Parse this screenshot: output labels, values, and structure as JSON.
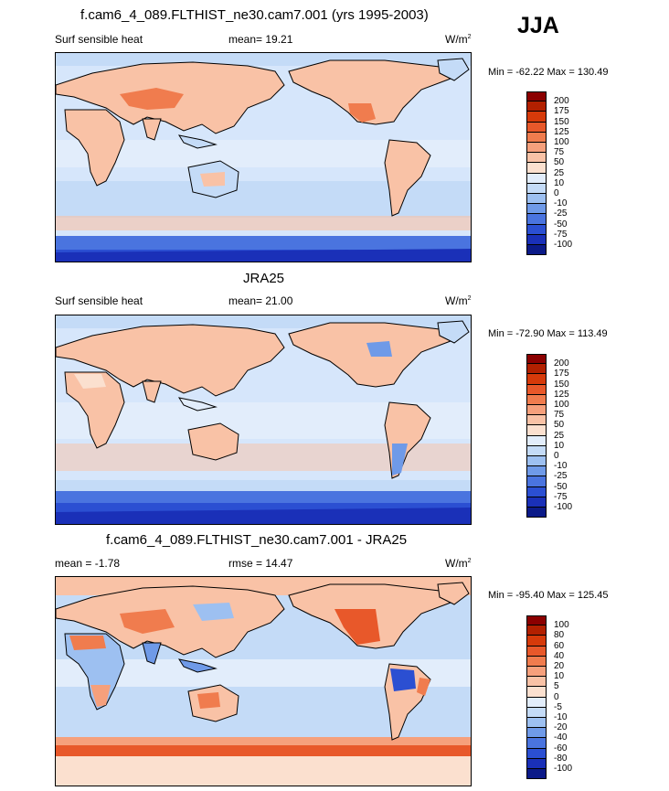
{
  "season": "JJA",
  "panels": [
    {
      "title": "f.cam6_4_089.FLTHIST_ne30.cam7.001 (yrs 1995-2003)",
      "left_label": "Surf sensible heat",
      "center_label": "mean=  19.21",
      "units_base": "W/m",
      "units_sup": "2",
      "minmax": "Min = -62.22 Max = 130.49",
      "colorbar_labels": [
        "200",
        "175",
        "150",
        "125",
        "100",
        "75",
        "50",
        "25",
        "10",
        "0",
        "-10",
        "-25",
        "-50",
        "-75",
        "-100"
      ]
    },
    {
      "title": "JRA25",
      "left_label": "Surf sensible heat",
      "center_label": "mean=  21.00",
      "units_base": "W/m",
      "units_sup": "2",
      "minmax": "Min = -72.90 Max = 113.49",
      "colorbar_labels": [
        "200",
        "175",
        "150",
        "125",
        "100",
        "75",
        "50",
        "25",
        "10",
        "0",
        "-10",
        "-25",
        "-50",
        "-75",
        "-100"
      ]
    },
    {
      "title": "f.cam6_4_089.FLTHIST_ne30.cam7.001 - JRA25",
      "left_label": "mean =  -1.78",
      "center_label": "rmse =  14.47",
      "units_base": "W/m",
      "units_sup": "2",
      "minmax": "Min = -95.40 Max = 125.45",
      "colorbar_labels": [
        "100",
        "80",
        "60",
        "40",
        "20",
        "10",
        "5",
        "0",
        "-5",
        "-10",
        "-20",
        "-40",
        "-60",
        "-80",
        "-100"
      ]
    }
  ],
  "colors": {
    "colorbar": [
      "#8b0000",
      "#b22000",
      "#d63a0a",
      "#e8582a",
      "#f07c4e",
      "#f6a07c",
      "#f9c2a6",
      "#fbe0cf",
      "#e2edfb",
      "#c4dbf7",
      "#9dc0f1",
      "#6f9ae8",
      "#4a74df",
      "#2b4fd2",
      "#1a30b8",
      "#0b1a88"
    ],
    "ocean": "#d6e6fb",
    "land_warm": "#f9c2a6",
    "land_hot": "#f07c4e",
    "southern_ocean": "#4a74df",
    "southern_ocean_deep": "#2b4fd2"
  }
}
